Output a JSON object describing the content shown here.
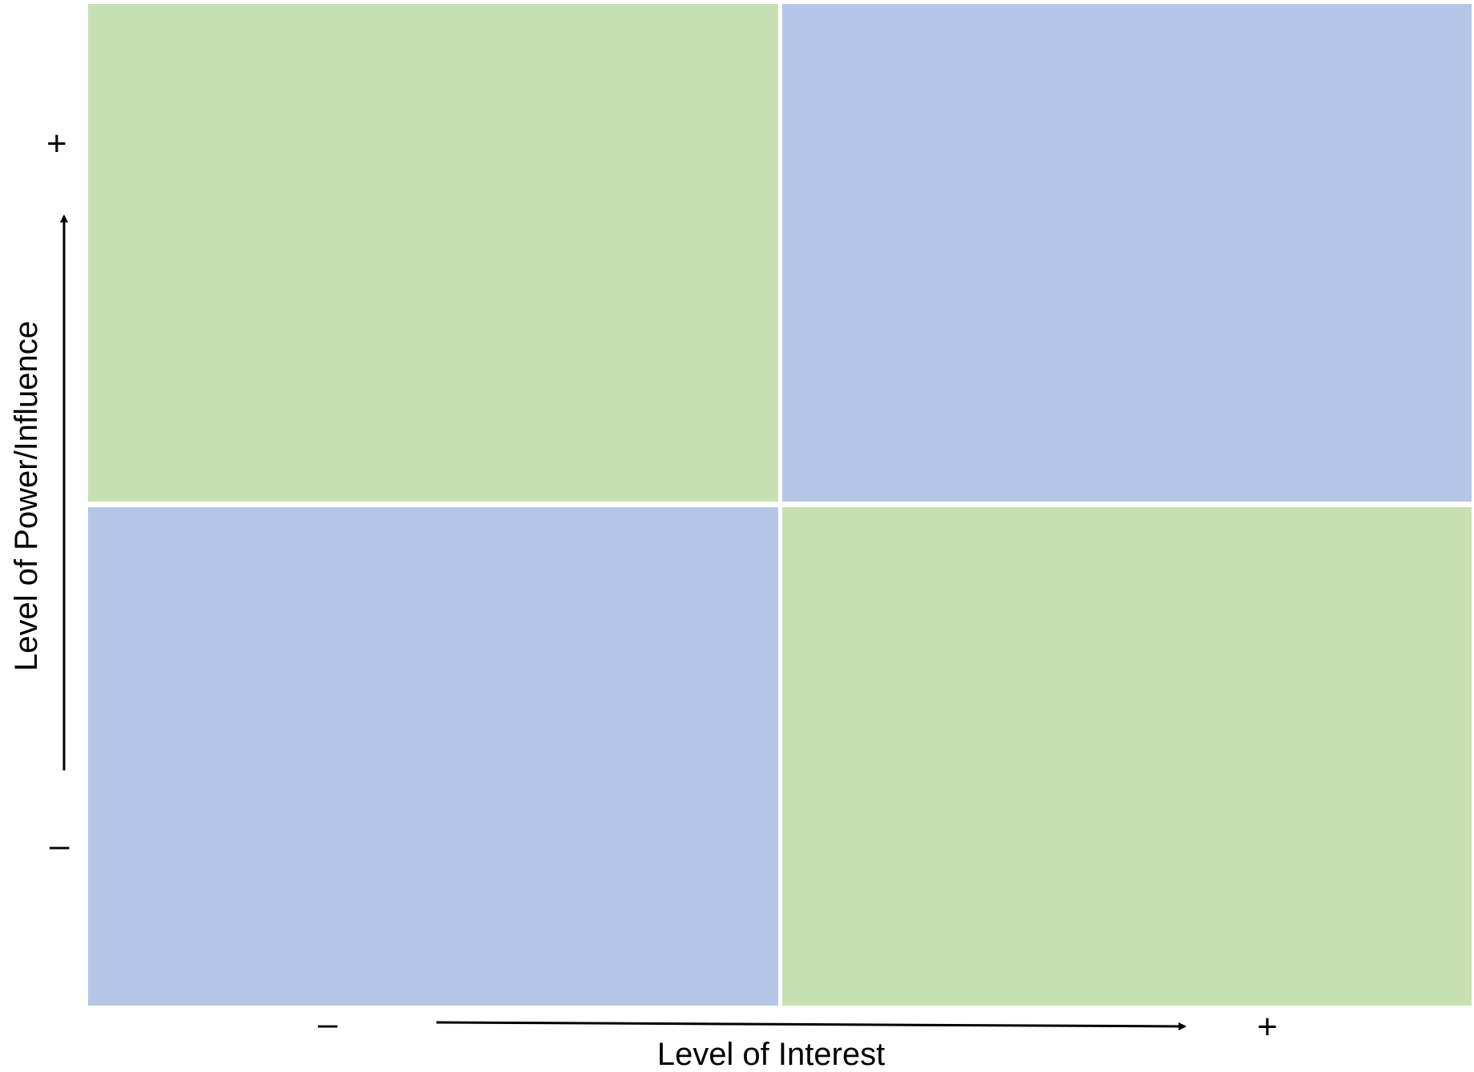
{
  "diagram": {
    "y_axis": {
      "title": "Level of Power/Influence",
      "high_sign": "+",
      "low_sign": "–"
    },
    "x_axis": {
      "title": "Level of Interest",
      "low_sign": "–",
      "high_sign": "+"
    },
    "quadrants": {
      "top_left": {
        "row": "high-power",
        "col": "low-interest",
        "color": "#c6e0b4"
      },
      "top_right": {
        "row": "high-power",
        "col": "high-interest",
        "color": "#b4c7e7"
      },
      "bottom_left": {
        "row": "low-power",
        "col": "low-interest",
        "color": "#b4c7e7"
      },
      "bottom_right": {
        "row": "low-power",
        "col": "high-interest",
        "color": "#c6e0b4"
      }
    },
    "colors": {
      "green": "#c6e0b4",
      "blue": "#b4c7e7",
      "arrow": "#000000"
    }
  }
}
